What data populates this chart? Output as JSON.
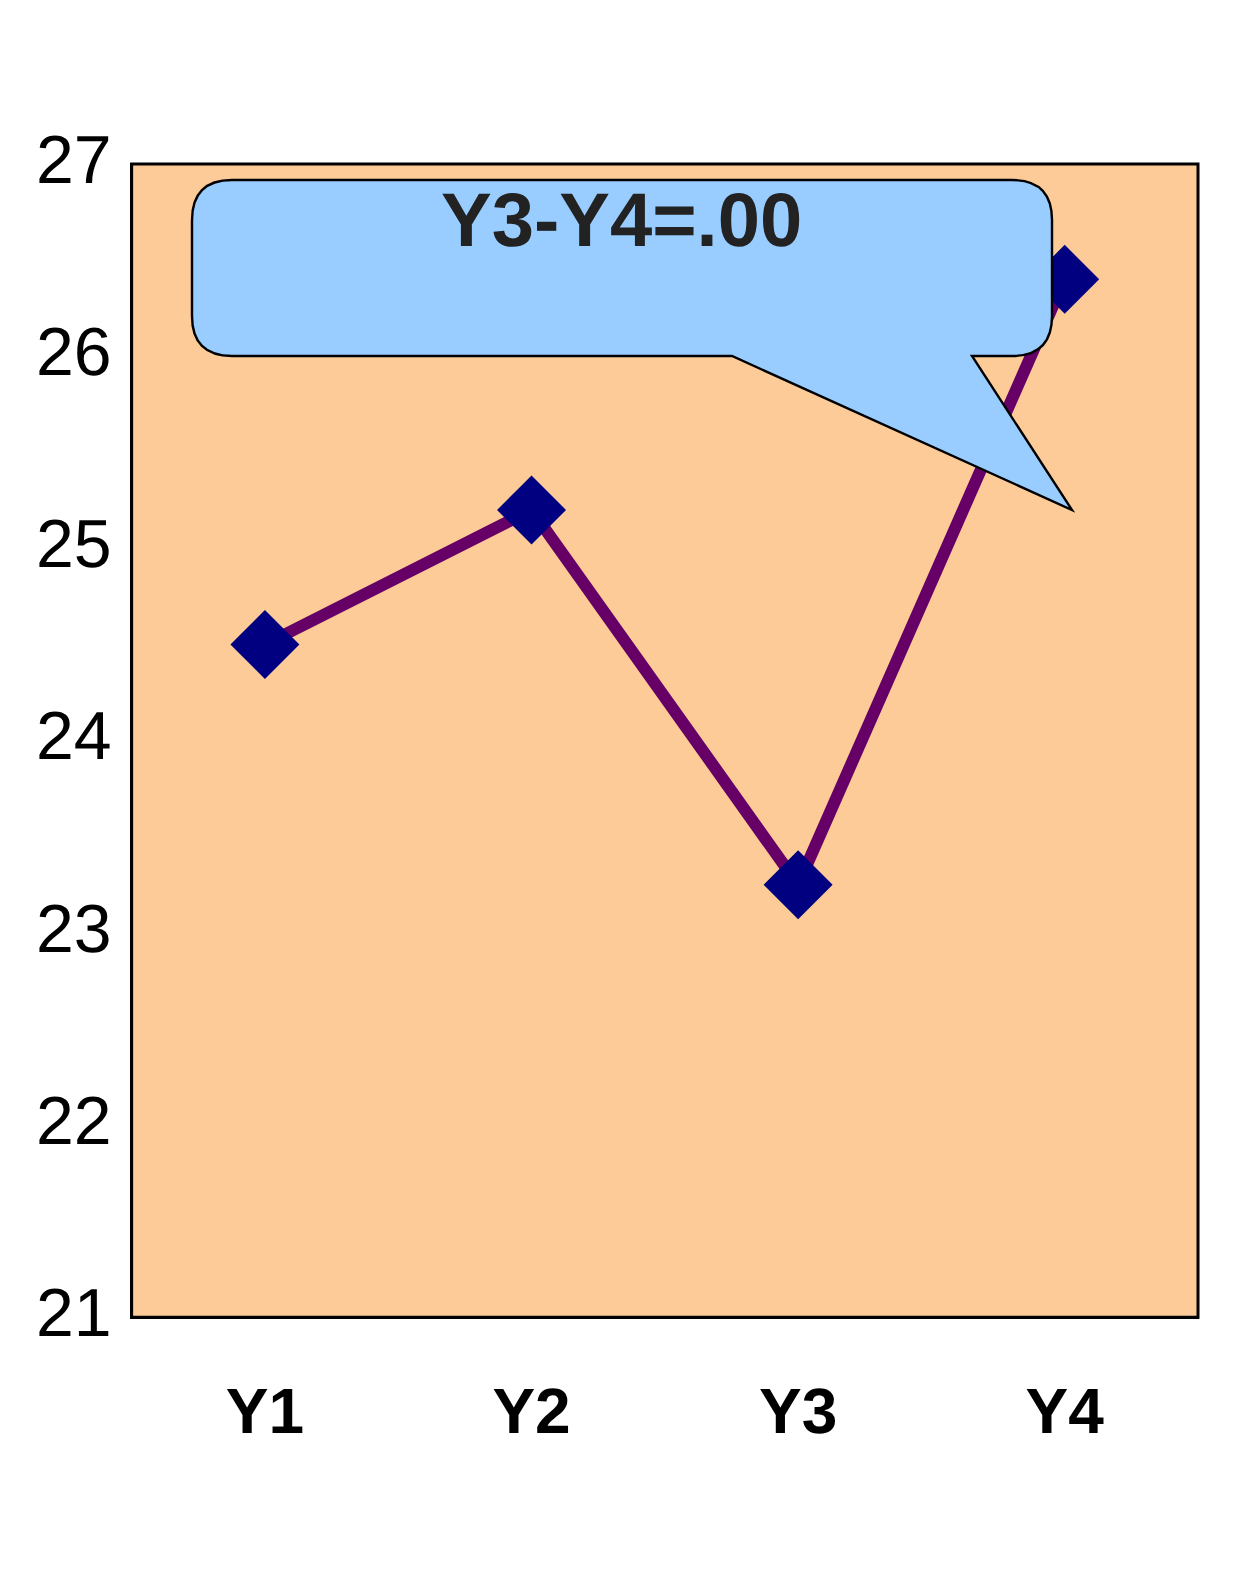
{
  "chart_data": {
    "type": "line",
    "categories": [
      "Y1",
      "Y2",
      "Y3",
      "Y4"
    ],
    "series": [
      {
        "color": "#660066",
        "values": [
          24.5,
          25.2,
          23.25,
          26.4
        ]
      }
    ],
    "ylim": [
      21,
      27
    ],
    "yticks": [
      21,
      22,
      23,
      24,
      25,
      26,
      27
    ],
    "grid": false,
    "legend": false,
    "marker": "diamond",
    "line_style": "solid",
    "annotations": [
      "Y3-Y4=.00"
    ]
  }
}
